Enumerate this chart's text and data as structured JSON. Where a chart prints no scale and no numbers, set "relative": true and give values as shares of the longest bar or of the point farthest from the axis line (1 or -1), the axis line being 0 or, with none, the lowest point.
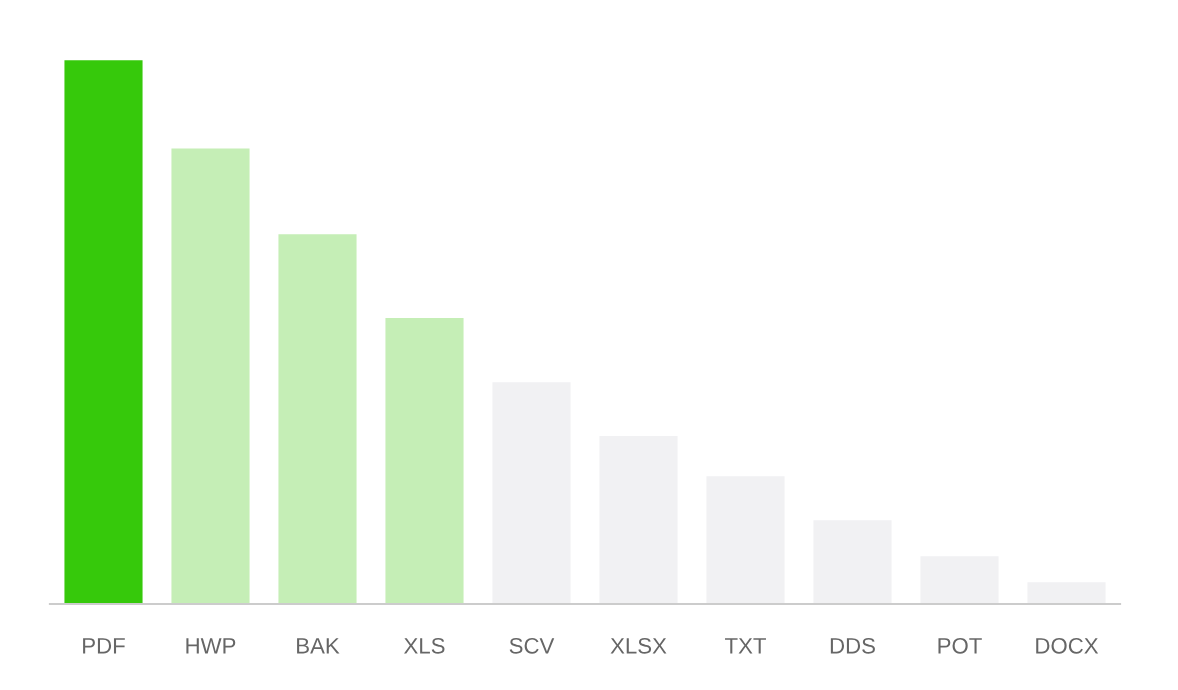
{
  "chart_data": {
    "type": "bar",
    "relative": true,
    "categories": [
      "PDF",
      "HWP",
      "BAK",
      "XLS",
      "SCV",
      "XLSX",
      "TXT",
      "DDS",
      "POT",
      "DOCX"
    ],
    "values": [
      1,
      0.838,
      0.68,
      0.526,
      0.408,
      0.309,
      0.235,
      0.154,
      0.088,
      0.04
    ],
    "colors": [
      "#36c90b",
      "#c5eeb6",
      "#c5eeb6",
      "#c5eeb6",
      "#f1f1f3",
      "#f1f1f3",
      "#f1f1f3",
      "#f1f1f3",
      "#f1f1f3",
      "#f1f1f3"
    ],
    "grid": false,
    "legend": false
  }
}
